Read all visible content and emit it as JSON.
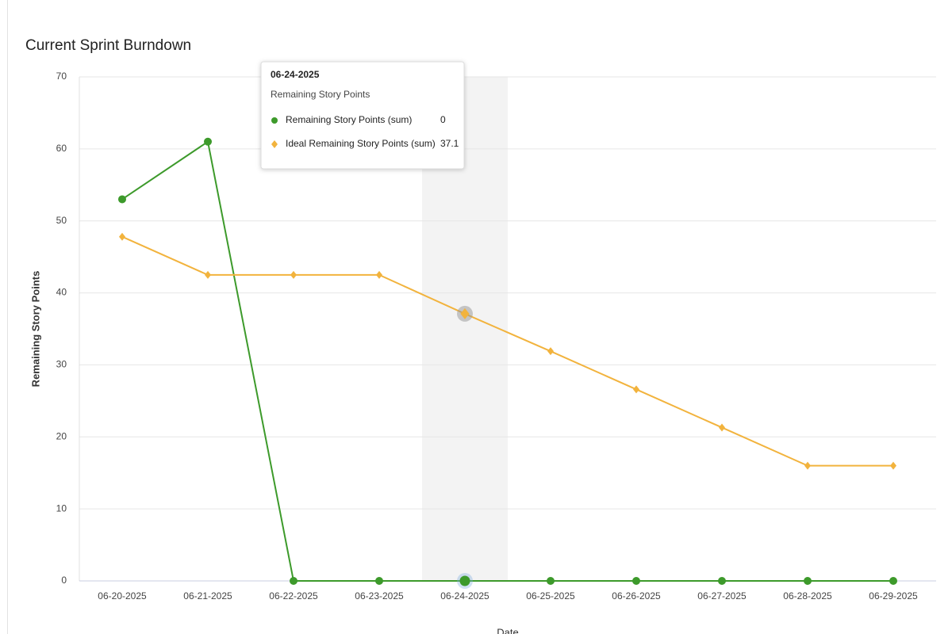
{
  "chart_data": {
    "type": "line",
    "title": "Current Sprint Burndown",
    "xlabel": "Date",
    "ylabel": "Remaining Story Points",
    "categories": [
      "06-20-2025",
      "06-21-2025",
      "06-22-2025",
      "06-23-2025",
      "06-24-2025",
      "06-25-2025",
      "06-26-2025",
      "06-27-2025",
      "06-28-2025",
      "06-29-2025"
    ],
    "series": [
      {
        "name": "Remaining Story Points (sum)",
        "color": "#3d9a2b",
        "marker": "circle",
        "values": [
          53,
          61,
          0,
          0,
          0,
          0,
          0,
          0,
          0,
          0
        ]
      },
      {
        "name": "Ideal Remaining Story Points (sum)",
        "color": "#f2b33d",
        "marker": "diamond",
        "values": [
          47.8,
          42.5,
          42.5,
          42.5,
          37.1,
          31.9,
          26.6,
          21.3,
          16,
          16
        ]
      }
    ],
    "ylim": [
      0,
      70
    ],
    "yticks": [
      0,
      10,
      20,
      30,
      40,
      50,
      60,
      70
    ],
    "grid": true
  }
}
